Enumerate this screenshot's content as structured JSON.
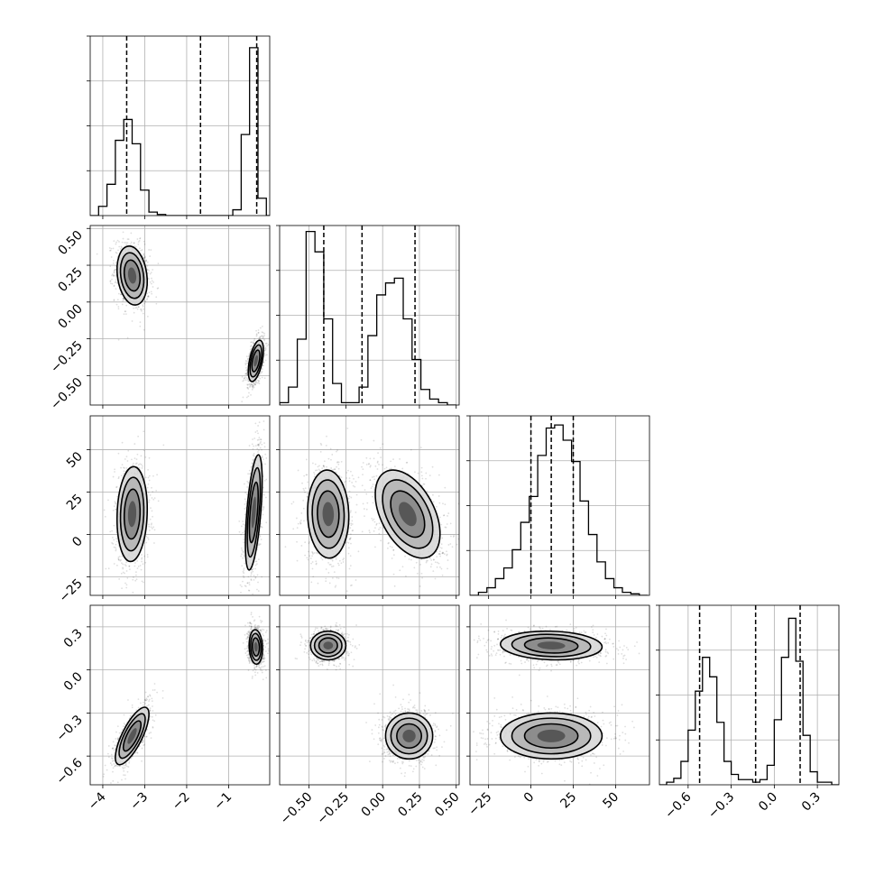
{
  "chart_data": {
    "type": "corner",
    "parameters": [
      {
        "range": [
          -4.3,
          -0.02
        ],
        "ticks": [
          -4,
          -3,
          -2,
          -1
        ],
        "tick_labels": [
          "−4",
          "−3",
          "−2",
          "−1"
        ]
      },
      {
        "range": [
          -0.7,
          0.52
        ],
        "ticks": [
          -0.5,
          -0.25,
          0.0,
          0.25,
          0.5
        ],
        "tick_labels": [
          "−0.50",
          "−0.25",
          "0.00",
          "0.25",
          "0.50"
        ]
      },
      {
        "range": [
          -36,
          70
        ],
        "ticks": [
          -25,
          0,
          25,
          50
        ],
        "tick_labels": [
          "−25",
          "0",
          "25",
          "50"
        ]
      },
      {
        "range": [
          -0.8,
          0.45
        ],
        "ticks": [
          -0.6,
          -0.3,
          0.0,
          0.3
        ],
        "tick_labels": [
          "−0.6",
          "−0.3",
          "0.0",
          "0.3"
        ]
      }
    ],
    "histograms": [
      {
        "edges": [
          -4.3,
          -4.1,
          -3.9,
          -3.7,
          -3.5,
          -3.3,
          -3.1,
          -2.9,
          -2.7,
          -2.5,
          -2.3,
          -2.1,
          -1.9,
          -1.7,
          -1.5,
          -1.3,
          -1.1,
          -0.9,
          -0.7,
          -0.5,
          -0.3,
          -0.1,
          0.1
        ],
        "counts": [
          0,
          0.08,
          0.27,
          0.65,
          0.83,
          0.62,
          0.22,
          0.03,
          0.01,
          0,
          0,
          0,
          0,
          0,
          0,
          0,
          0,
          0.05,
          0.7,
          1.45,
          0.15,
          0
        ],
        "max": 1.55,
        "quantiles": [
          -3.43,
          -1.67,
          -0.33
        ]
      },
      {
        "edges": [
          -0.7,
          -0.64,
          -0.58,
          -0.52,
          -0.46,
          -0.4,
          -0.34,
          -0.28,
          -0.22,
          -0.16,
          -0.1,
          -0.04,
          0.02,
          0.08,
          0.14,
          0.2,
          0.26,
          0.32,
          0.38,
          0.44,
          0.5
        ],
        "counts": [
          0.02,
          0.15,
          0.55,
          1.45,
          1.28,
          0.72,
          0.18,
          0.02,
          0.02,
          0.15,
          0.58,
          0.92,
          1.02,
          1.06,
          0.72,
          0.38,
          0.13,
          0.05,
          0.02,
          0
        ],
        "max": 1.5,
        "quantiles": [
          -0.4,
          -0.14,
          0.22
        ]
      },
      {
        "edges": [
          -36,
          -31,
          -26,
          -21,
          -16,
          -11,
          -6,
          -1,
          4,
          9,
          14,
          19,
          24,
          29,
          34,
          39,
          44,
          49,
          54,
          59,
          64,
          69
        ],
        "counts": [
          0,
          0.02,
          0.05,
          0.11,
          0.18,
          0.3,
          0.48,
          0.65,
          0.92,
          1.1,
          1.12,
          1.02,
          0.88,
          0.62,
          0.4,
          0.22,
          0.11,
          0.05,
          0.02,
          0.01,
          0
        ],
        "max": 1.18,
        "quantiles": [
          0,
          12,
          25
        ]
      },
      {
        "edges": [
          -0.8,
          -0.75,
          -0.7,
          -0.65,
          -0.6,
          -0.55,
          -0.5,
          -0.45,
          -0.4,
          -0.35,
          -0.3,
          -0.25,
          -0.2,
          -0.15,
          -0.1,
          -0.05,
          0.0,
          0.05,
          0.1,
          0.15,
          0.2,
          0.25,
          0.3,
          0.35,
          0.4,
          0.45
        ],
        "counts": [
          0,
          0.02,
          0.05,
          0.18,
          0.42,
          0.72,
          0.98,
          0.83,
          0.48,
          0.18,
          0.08,
          0.04,
          0.04,
          0.02,
          0.04,
          0.15,
          0.5,
          0.98,
          1.28,
          0.95,
          0.38,
          0.1,
          0.02,
          0.02,
          0
        ],
        "max": 1.38,
        "quantiles": [
          -0.52,
          -0.13,
          0.18
        ]
      }
    ],
    "scatter_panels": [
      {
        "row": 1,
        "col": 0,
        "modes": [
          {
            "cx": -3.3,
            "cy": 0.18,
            "sx": 0.18,
            "sy": 0.1,
            "rho": -0.2,
            "n": 900
          },
          {
            "cx": -0.35,
            "cy": -0.4,
            "sx": 0.09,
            "sy": 0.07,
            "rho": 0.5,
            "n": 900
          }
        ]
      },
      {
        "row": 2,
        "col": 0,
        "modes": [
          {
            "cx": -3.3,
            "cy": 12,
            "sx": 0.18,
            "sy": 14,
            "rho": 0.1,
            "n": 900
          },
          {
            "cx": -0.4,
            "cy": 13,
            "sx": 0.1,
            "sy": 17,
            "rho": 0.55,
            "n": 900
          }
        ]
      },
      {
        "row": 2,
        "col": 1,
        "modes": [
          {
            "cx": -0.37,
            "cy": 12,
            "sx": 0.07,
            "sy": 13,
            "rho": -0.05,
            "n": 900
          },
          {
            "cx": 0.17,
            "cy": 12,
            "sx": 0.11,
            "sy": 13,
            "rho": -0.45,
            "n": 900
          }
        ]
      },
      {
        "row": 3,
        "col": 0,
        "modes": [
          {
            "cx": -3.3,
            "cy": -0.46,
            "sx": 0.2,
            "sy": 0.1,
            "rho": 0.75,
            "n": 900
          },
          {
            "cx": -0.35,
            "cy": 0.16,
            "sx": 0.08,
            "sy": 0.06,
            "rho": -0.1,
            "n": 900
          }
        ]
      },
      {
        "row": 3,
        "col": 1,
        "modes": [
          {
            "cx": -0.37,
            "cy": 0.17,
            "sx": 0.06,
            "sy": 0.05,
            "rho": 0.0,
            "n": 900
          },
          {
            "cx": 0.18,
            "cy": -0.46,
            "sx": 0.08,
            "sy": 0.08,
            "rho": 0.0,
            "n": 900
          }
        ]
      },
      {
        "row": 3,
        "col": 2,
        "modes": [
          {
            "cx": 12,
            "cy": 0.17,
            "sx": 15,
            "sy": 0.05,
            "rho": -0.1,
            "n": 900
          },
          {
            "cx": 12,
            "cy": -0.46,
            "sx": 15,
            "sy": 0.08,
            "rho": 0.0,
            "n": 900
          }
        ]
      }
    ],
    "grid": true,
    "quantile_lines": "dashed"
  }
}
